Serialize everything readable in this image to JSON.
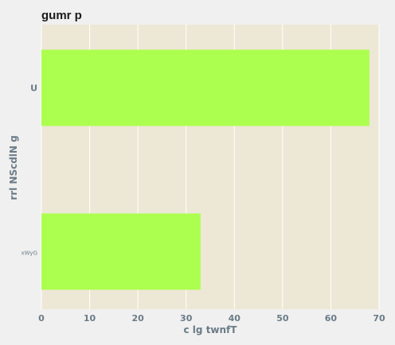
{
  "chart_data": {
    "type": "bar",
    "orientation": "horizontal",
    "title": "gumr p",
    "xlabel": "c lg  twnfT",
    "ylabel": "rrl NScdlN g",
    "categories": [
      "U",
      "xWyG"
    ],
    "values": [
      68,
      33
    ],
    "xlim": [
      0,
      70
    ],
    "xticks": [
      0,
      10,
      20,
      30,
      40,
      50,
      60,
      70
    ],
    "grid": true,
    "colors": {
      "bar": "#adff4f",
      "plot_bg": "#ede7d6",
      "page_bg": "#f0f0f0",
      "grid": "#ffffff",
      "text": "#6b7b86"
    }
  }
}
